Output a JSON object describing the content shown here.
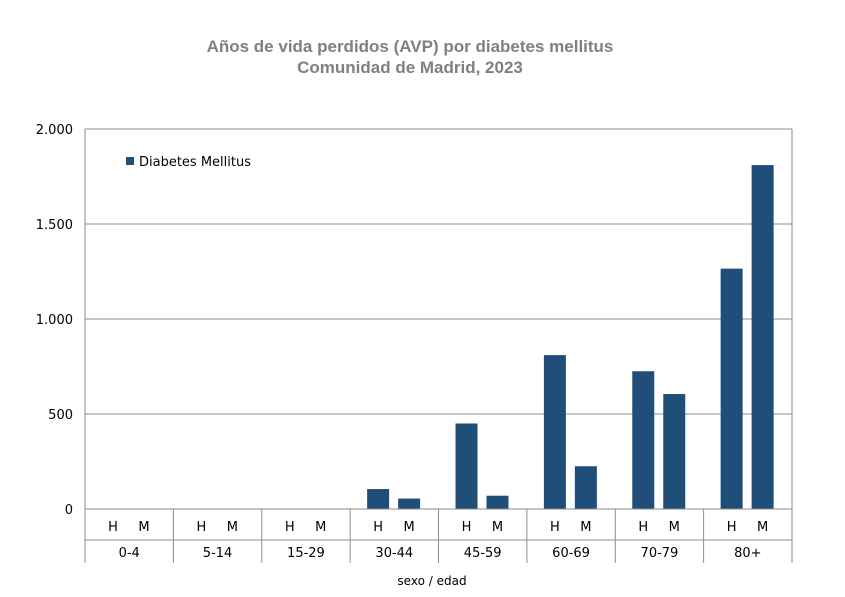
{
  "title_line1": "Años de vida perdidos (AVP) por diabetes mellitus",
  "title_line2": "Comunidad de Madrid, 2023",
  "chart_data": {
    "type": "bar",
    "title": "Años de vida perdidos (AVP) por diabetes mellitus Comunidad de Madrid, 2023",
    "xlabel": "sexo / edad",
    "ylabel": "",
    "ylim": [
      0,
      2000
    ],
    "yticks": [
      0,
      500,
      1000,
      1500,
      2000
    ],
    "ytick_labels": [
      "0",
      "500",
      "1.000",
      "1.500",
      "2.000"
    ],
    "grid": true,
    "legend_position": "top-left",
    "color": "#1f4e79",
    "age_groups": [
      "0-4",
      "5-14",
      "15-29",
      "30-44",
      "45-59",
      "60-69",
      "70-79",
      "80+"
    ],
    "sex_labels": [
      "H",
      "M"
    ],
    "series": [
      {
        "name": "Diabetes Mellitus",
        "values": [
          [
            0,
            0
          ],
          [
            0,
            0
          ],
          [
            0,
            0
          ],
          [
            105,
            55
          ],
          [
            450,
            70
          ],
          [
            810,
            225
          ],
          [
            725,
            605
          ],
          [
            1265,
            1810
          ]
        ]
      }
    ]
  }
}
